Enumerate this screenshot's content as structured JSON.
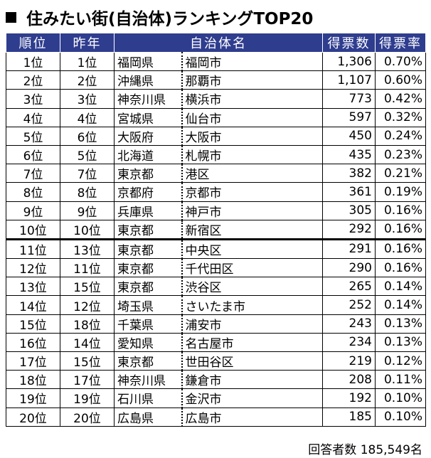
{
  "title": "住みたい街(自治体)ランキングTOP20",
  "headers": {
    "rank": "順位",
    "last_year": "昨年",
    "municipality": "自治体名",
    "votes": "得票数",
    "rate": "得票率"
  },
  "rows": [
    {
      "rank": "1位",
      "last": "1位",
      "pref": "福岡県",
      "city": "福岡市",
      "votes": "1,306",
      "rate": "0.70%"
    },
    {
      "rank": "2位",
      "last": "2位",
      "pref": "沖縄県",
      "city": "那覇市",
      "votes": "1,107",
      "rate": "0.60%"
    },
    {
      "rank": "3位",
      "last": "3位",
      "pref": "神奈川県",
      "city": "横浜市",
      "votes": "773",
      "rate": "0.42%"
    },
    {
      "rank": "4位",
      "last": "4位",
      "pref": "宮城県",
      "city": "仙台市",
      "votes": "597",
      "rate": "0.32%"
    },
    {
      "rank": "5位",
      "last": "6位",
      "pref": "大阪府",
      "city": "大阪市",
      "votes": "450",
      "rate": "0.24%"
    },
    {
      "rank": "6位",
      "last": "5位",
      "pref": "北海道",
      "city": "札幌市",
      "votes": "435",
      "rate": "0.23%"
    },
    {
      "rank": "7位",
      "last": "7位",
      "pref": "東京都",
      "city": "港区",
      "votes": "382",
      "rate": "0.21%"
    },
    {
      "rank": "8位",
      "last": "8位",
      "pref": "京都府",
      "city": "京都市",
      "votes": "361",
      "rate": "0.19%"
    },
    {
      "rank": "9位",
      "last": "9位",
      "pref": "兵庫県",
      "city": "神戸市",
      "votes": "305",
      "rate": "0.16%"
    },
    {
      "rank": "10位",
      "last": "10位",
      "pref": "東京都",
      "city": "新宿区",
      "votes": "292",
      "rate": "0.16%"
    },
    {
      "rank": "11位",
      "last": "13位",
      "pref": "東京都",
      "city": "中央区",
      "votes": "291",
      "rate": "0.16%"
    },
    {
      "rank": "12位",
      "last": "11位",
      "pref": "東京都",
      "city": "千代田区",
      "votes": "290",
      "rate": "0.16%"
    },
    {
      "rank": "13位",
      "last": "15位",
      "pref": "東京都",
      "city": "渋谷区",
      "votes": "265",
      "rate": "0.14%"
    },
    {
      "rank": "14位",
      "last": "12位",
      "pref": "埼玉県",
      "city": "さいたま市",
      "votes": "252",
      "rate": "0.14%"
    },
    {
      "rank": "15位",
      "last": "18位",
      "pref": "千葉県",
      "city": "浦安市",
      "votes": "243",
      "rate": "0.13%"
    },
    {
      "rank": "16位",
      "last": "14位",
      "pref": "愛知県",
      "city": "名古屋市",
      "votes": "234",
      "rate": "0.13%"
    },
    {
      "rank": "17位",
      "last": "15位",
      "pref": "東京都",
      "city": "世田谷区",
      "votes": "219",
      "rate": "0.12%"
    },
    {
      "rank": "18位",
      "last": "17位",
      "pref": "神奈川県",
      "city": "鎌倉市",
      "votes": "208",
      "rate": "0.11%"
    },
    {
      "rank": "19位",
      "last": "19位",
      "pref": "石川県",
      "city": "金沢市",
      "votes": "192",
      "rate": "0.10%"
    },
    {
      "rank": "20位",
      "last": "20位",
      "pref": "広島県",
      "city": "広島市",
      "votes": "185",
      "rate": "0.10%"
    }
  ],
  "footnote": "回答者数 185,549名",
  "colors": {
    "header_bg": "#2f3d8f",
    "header_text": "#ffffff"
  }
}
